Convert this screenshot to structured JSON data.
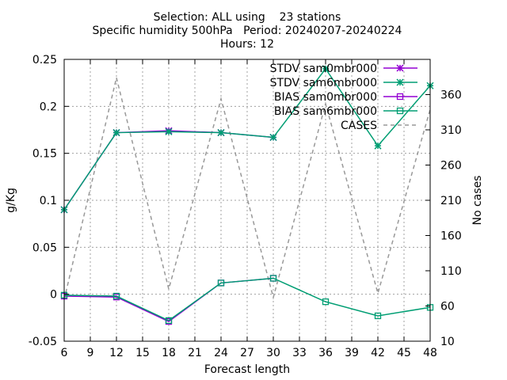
{
  "chart_data": {
    "type": "line",
    "title_lines": [
      "Selection: ALL using    23 stations",
      "Specific humidity 500hPa   Period: 20240207-20240224",
      "Hours: 12"
    ],
    "xlabel": "Forecast length",
    "ylabel": "g/Kg",
    "y2label": "No cases",
    "x_ticks": [
      6,
      9,
      12,
      15,
      18,
      21,
      24,
      27,
      30,
      33,
      36,
      39,
      42,
      45,
      48
    ],
    "y_ticks": [
      -0.05,
      0,
      0.05,
      0.1,
      0.15,
      0.2,
      0.25
    ],
    "y_tick_labels": [
      "-0.05",
      "0",
      "0.05",
      "0.1",
      "0.15",
      "0.2",
      "0.25"
    ],
    "y2_ticks": [
      10,
      60,
      110,
      160,
      210,
      260,
      310,
      360
    ],
    "xlim": [
      6,
      48
    ],
    "ylim": [
      -0.05,
      0.25
    ],
    "y2lim": [
      10,
      410
    ],
    "grid": true,
    "legend_position": "top-right",
    "series": [
      {
        "name": "STDV sam0mbr000",
        "color": "#9400d3",
        "marker": "star",
        "axis": "y",
        "x": [
          6,
          12,
          18,
          24,
          30
        ],
        "values": [
          0.09,
          0.172,
          0.174,
          0.172,
          0.167
        ]
      },
      {
        "name": "STDV sam6mbr000",
        "color": "#009e73",
        "marker": "star",
        "axis": "y",
        "x": [
          6,
          12,
          18,
          24,
          30,
          36,
          42,
          48
        ],
        "values": [
          0.09,
          0.172,
          0.173,
          0.172,
          0.167,
          0.24,
          0.158,
          0.222
        ]
      },
      {
        "name": "BIAS sam0mbr000",
        "color": "#9400d3",
        "marker": "square",
        "axis": "y",
        "x": [
          6,
          12,
          18,
          24,
          30
        ],
        "values": [
          -0.002,
          -0.003,
          -0.029,
          0.012,
          0.017
        ]
      },
      {
        "name": "BIAS sam6mbr000",
        "color": "#009e73",
        "marker": "square",
        "axis": "y",
        "x": [
          6,
          12,
          18,
          24,
          30,
          36,
          42,
          48
        ],
        "values": [
          -0.001,
          -0.002,
          -0.028,
          0.012,
          0.017,
          -0.008,
          -0.023,
          -0.014
        ]
      },
      {
        "name": "CASES",
        "color": "#999999",
        "marker": "none",
        "dash": true,
        "axis": "y2",
        "x": [
          6,
          12,
          18,
          24,
          30,
          36,
          42,
          48
        ],
        "values": [
          69,
          384,
          84,
          354,
          72,
          347,
          78,
          339
        ]
      }
    ]
  }
}
